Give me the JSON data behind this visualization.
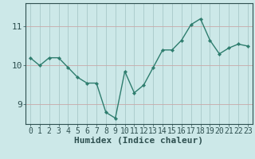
{
  "xlabel": "Humidex (Indice chaleur)",
  "x": [
    0,
    1,
    2,
    3,
    4,
    5,
    6,
    7,
    8,
    9,
    10,
    11,
    12,
    13,
    14,
    15,
    16,
    17,
    18,
    19,
    20,
    21,
    22,
    23
  ],
  "y": [
    10.2,
    10.0,
    10.2,
    10.2,
    9.95,
    9.7,
    9.55,
    9.55,
    8.8,
    8.65,
    9.85,
    9.3,
    9.5,
    9.95,
    10.4,
    10.4,
    10.65,
    11.05,
    11.2,
    10.65,
    10.3,
    10.45,
    10.55,
    10.5
  ],
  "line_color": "#2e7d6e",
  "marker": "D",
  "marker_size": 2.2,
  "line_width": 1.0,
  "bg_color": "#cce8e8",
  "grid_h_color": "#c8a8a8",
  "grid_v_color": "#a8c8c8",
  "ylim": [
    8.5,
    11.6
  ],
  "yticks": [
    9,
    10,
    11
  ],
  "xlim": [
    -0.5,
    23.5
  ],
  "xlabel_fontsize": 8,
  "tick_fontsize": 7,
  "label_color": "#2e5050"
}
